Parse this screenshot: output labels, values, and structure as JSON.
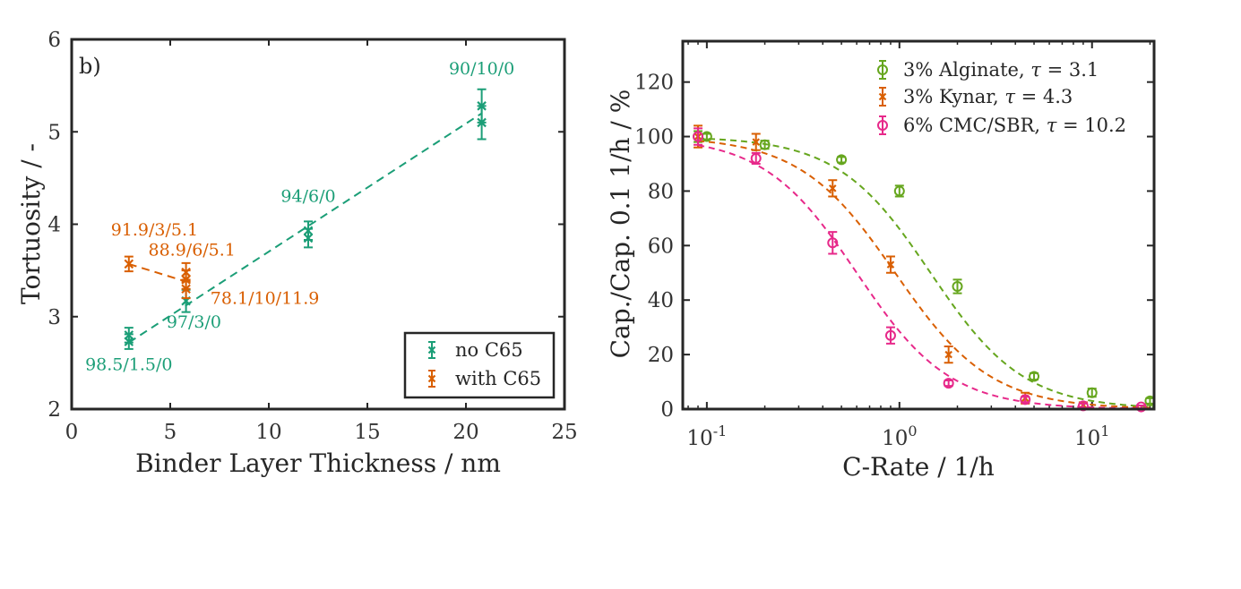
{
  "colors": {
    "teal": "#1b9e77",
    "orange": "#d95f02",
    "green": "#66a61e",
    "magenta": "#e7298a",
    "axis": "#262626"
  },
  "chart_data": [
    {
      "type": "scatter",
      "panel_label": "b)",
      "xlabel": "Binder Layer Thickness / nm",
      "ylabel": "Tortuosity / -",
      "xlim": [
        0,
        25
      ],
      "ylim": [
        2,
        6
      ],
      "xticks": [
        "0",
        "5",
        "10",
        "15",
        "20",
        "25"
      ],
      "yticks": [
        "2",
        "3",
        "4",
        "5",
        "6"
      ],
      "legend_position": "bottom-right",
      "series": [
        {
          "name": "no C65",
          "color": "#1b9e77",
          "marker": "x",
          "trend_line": [
            [
              2.9,
              2.72
            ],
            [
              20.8,
              5.2
            ]
          ],
          "points": [
            {
              "x": 2.9,
              "y": 2.73,
              "err": 0.08
            },
            {
              "x": 2.9,
              "y": 2.8,
              "err": 0.08
            },
            {
              "x": 5.8,
              "y": 3.17,
              "err": 0.12
            },
            {
              "x": 12.0,
              "y": 3.85,
              "err": 0.1
            },
            {
              "x": 12.0,
              "y": 3.93,
              "err": 0.1
            },
            {
              "x": 20.8,
              "y": 5.1,
              "err": 0.18
            },
            {
              "x": 20.8,
              "y": 5.28,
              "err": 0.18
            }
          ]
        },
        {
          "name": "with C65",
          "color": "#d95f02",
          "marker": "x",
          "trend_line": [
            [
              2.9,
              3.57
            ],
            [
              5.8,
              3.38
            ]
          ],
          "points": [
            {
              "x": 2.9,
              "y": 3.57,
              "err": 0.08
            },
            {
              "x": 5.8,
              "y": 3.3,
              "err": 0.1
            },
            {
              "x": 5.8,
              "y": 3.4,
              "err": 0.1
            },
            {
              "x": 5.8,
              "y": 3.48,
              "err": 0.1
            }
          ]
        }
      ],
      "annotations": [
        {
          "text": "90/10/0",
          "color": "#1b9e77",
          "x": 20.8,
          "y": 5.62
        },
        {
          "text": "94/6/0",
          "color": "#1b9e77",
          "x": 12.0,
          "y": 4.24
        },
        {
          "text": "91.9/3/5.1",
          "color": "#d95f02",
          "x": 4.2,
          "y": 3.88
        },
        {
          "text": "88.9/6/5.1",
          "color": "#d95f02",
          "x": 6.1,
          "y": 3.66
        },
        {
          "text": "78.1/10/11.9",
          "color": "#d95f02",
          "x": 9.8,
          "y": 3.14
        },
        {
          "text": "97/3/0",
          "color": "#1b9e77",
          "x": 6.2,
          "y": 2.88
        },
        {
          "text": "98.5/1.5/0",
          "color": "#1b9e77",
          "x": 2.9,
          "y": 2.42
        }
      ]
    },
    {
      "type": "scatter",
      "xlabel": "C-Rate / 1/h",
      "ylabel": "Cap./Cap. 0.1 1/h / %",
      "xscale": "log",
      "xlim": [
        0.075,
        21
      ],
      "ylim": [
        0,
        135
      ],
      "xticks": [
        {
          "value": 0.1,
          "base": "10",
          "exp": "-1"
        },
        {
          "value": 1,
          "base": "10",
          "exp": "0"
        },
        {
          "value": 10,
          "base": "10",
          "exp": "1"
        }
      ],
      "yticks": [
        0,
        20,
        40,
        60,
        80,
        100,
        120
      ],
      "legend_position": "top-right",
      "series": [
        {
          "name": "3% Alginate, τ = 3.1",
          "legend_prefix": "3% Alginate, ",
          "legend_tau": "τ",
          "legend_suffix": " = 3.1",
          "color": "#66a61e",
          "marker": "o",
          "fit_k": 1.45,
          "fit_n": 1.8,
          "points": [
            {
              "x": 0.09,
              "y": 100,
              "err": 2
            },
            {
              "x": 0.1,
              "y": 100,
              "err": 1
            },
            {
              "x": 0.2,
              "y": 97,
              "err": 1.5
            },
            {
              "x": 0.5,
              "y": 91.5,
              "err": 1
            },
            {
              "x": 1.0,
              "y": 80,
              "err": 2
            },
            {
              "x": 2.0,
              "y": 45,
              "err": 2.5
            },
            {
              "x": 5.0,
              "y": 12,
              "err": 1.2
            },
            {
              "x": 10.0,
              "y": 6,
              "err": 1.5
            },
            {
              "x": 20.0,
              "y": 3,
              "err": 1
            }
          ]
        },
        {
          "name": "3% Kynar, τ = 4.3",
          "legend_prefix": "3% Kynar, ",
          "legend_tau": "τ",
          "legend_suffix": " = 4.3",
          "color": "#d95f02",
          "marker": "x",
          "fit_k": 0.95,
          "fit_n": 1.75,
          "points": [
            {
              "x": 0.09,
              "y": 100,
              "err": 4
            },
            {
              "x": 0.18,
              "y": 98,
              "err": 3
            },
            {
              "x": 0.45,
              "y": 81,
              "err": 3
            },
            {
              "x": 0.9,
              "y": 53,
              "err": 3
            },
            {
              "x": 1.8,
              "y": 20,
              "err": 3
            },
            {
              "x": 4.5,
              "y": 4,
              "err": 2
            },
            {
              "x": 9.0,
              "y": 1.5,
              "err": 1
            }
          ]
        },
        {
          "name": "6% CMC/SBR, τ = 10.2",
          "legend_prefix": "6% CMC/SBR, ",
          "legend_tau": "τ",
          "legend_suffix": " = 10.2",
          "color": "#e7298a",
          "marker": "o",
          "fit_k": 0.6,
          "fit_n": 1.8,
          "points": [
            {
              "x": 0.09,
              "y": 100,
              "err": 3
            },
            {
              "x": 0.18,
              "y": 92,
              "err": 2
            },
            {
              "x": 0.45,
              "y": 61,
              "err": 4
            },
            {
              "x": 0.9,
              "y": 27,
              "err": 3
            },
            {
              "x": 1.8,
              "y": 9.5,
              "err": 1
            },
            {
              "x": 4.5,
              "y": 3.5,
              "err": 1
            },
            {
              "x": 9.0,
              "y": 1.2,
              "err": 0.8
            },
            {
              "x": 18.0,
              "y": 0.8,
              "err": 0.5
            }
          ]
        }
      ]
    }
  ]
}
